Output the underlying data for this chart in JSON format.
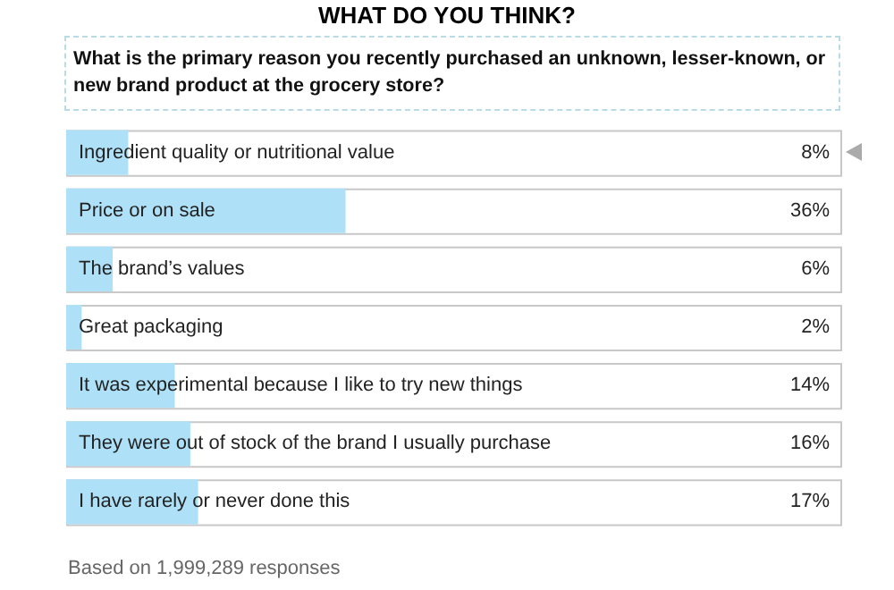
{
  "chart_data": {
    "type": "bar",
    "orientation": "horizontal",
    "title": "WHAT DO YOU THINK?",
    "subtitle": "What is the primary reason you recently purchased an unknown, lesser-known, or new brand product at the grocery store?",
    "categories": [
      "Ingredient quality or nutritional value",
      "Price or on sale",
      "The brand’s values",
      "Great packaging",
      "It was experimental because I like to try new things",
      "They were out of stock of the brand I usually purchase",
      "I have rarely or never done this"
    ],
    "values": [
      8,
      36,
      6,
      2,
      14,
      16,
      17
    ],
    "value_labels": [
      "8%",
      "36%",
      "6%",
      "2%",
      "14%",
      "16%",
      "17%"
    ],
    "color": "#aee0f7",
    "xlim": [
      0,
      100
    ],
    "tick_labels": false,
    "legend": false,
    "annotations": [
      "Based on 1,999,289 responses"
    ]
  }
}
